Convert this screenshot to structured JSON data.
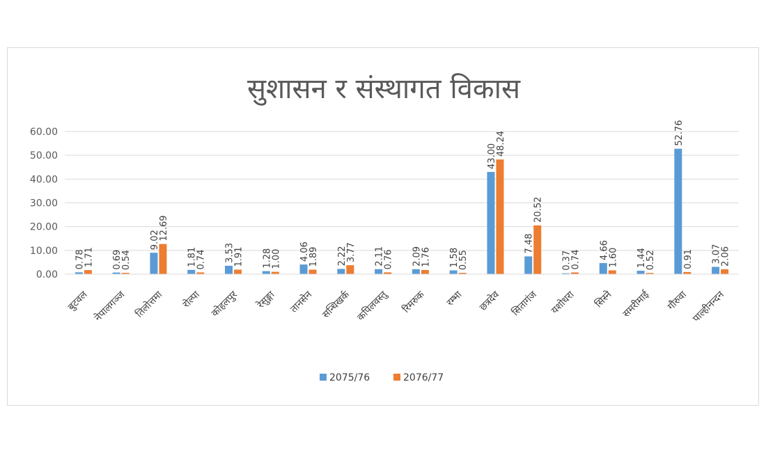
{
  "chart_data": {
    "type": "bar",
    "title": "सुशासन र संस्थागत विकास",
    "categories": [
      "बुटवल",
      "नेपालगञ्ज",
      "तिलोत्तमा",
      "रोल्पा",
      "कोहलपुर",
      "रेसुङ्गा",
      "तानसेन",
      "सन्धिखर्क",
      "कपिलवस्तु",
      "रिमरुक",
      "रम्भा",
      "छत्रदेव",
      "सितागंज",
      "यशोधरा",
      "सिस्ने",
      "समरीमाई",
      "गौरुवा",
      "पाल्हीनन्दन"
    ],
    "series": [
      {
        "name": "2075/76",
        "color": "#5b9bd5",
        "values": [
          0.78,
          0.69,
          9.02,
          1.81,
          3.53,
          1.28,
          4.06,
          2.22,
          2.11,
          2.09,
          1.58,
          43.0,
          7.48,
          0.37,
          4.66,
          1.44,
          52.76,
          3.07
        ]
      },
      {
        "name": "2076/77",
        "color": "#ed7d31",
        "values": [
          1.71,
          0.54,
          12.69,
          0.74,
          1.91,
          1.0,
          1.89,
          3.77,
          0.76,
          1.76,
          0.55,
          48.24,
          20.52,
          0.74,
          1.6,
          0.52,
          0.91,
          2.06
        ]
      }
    ],
    "y_ticks": [
      "0.00",
      "10.00",
      "20.00",
      "30.00",
      "40.00",
      "50.00",
      "60.00"
    ],
    "ylim": [
      0,
      60
    ],
    "grid": true,
    "legend_position": "bottom"
  }
}
